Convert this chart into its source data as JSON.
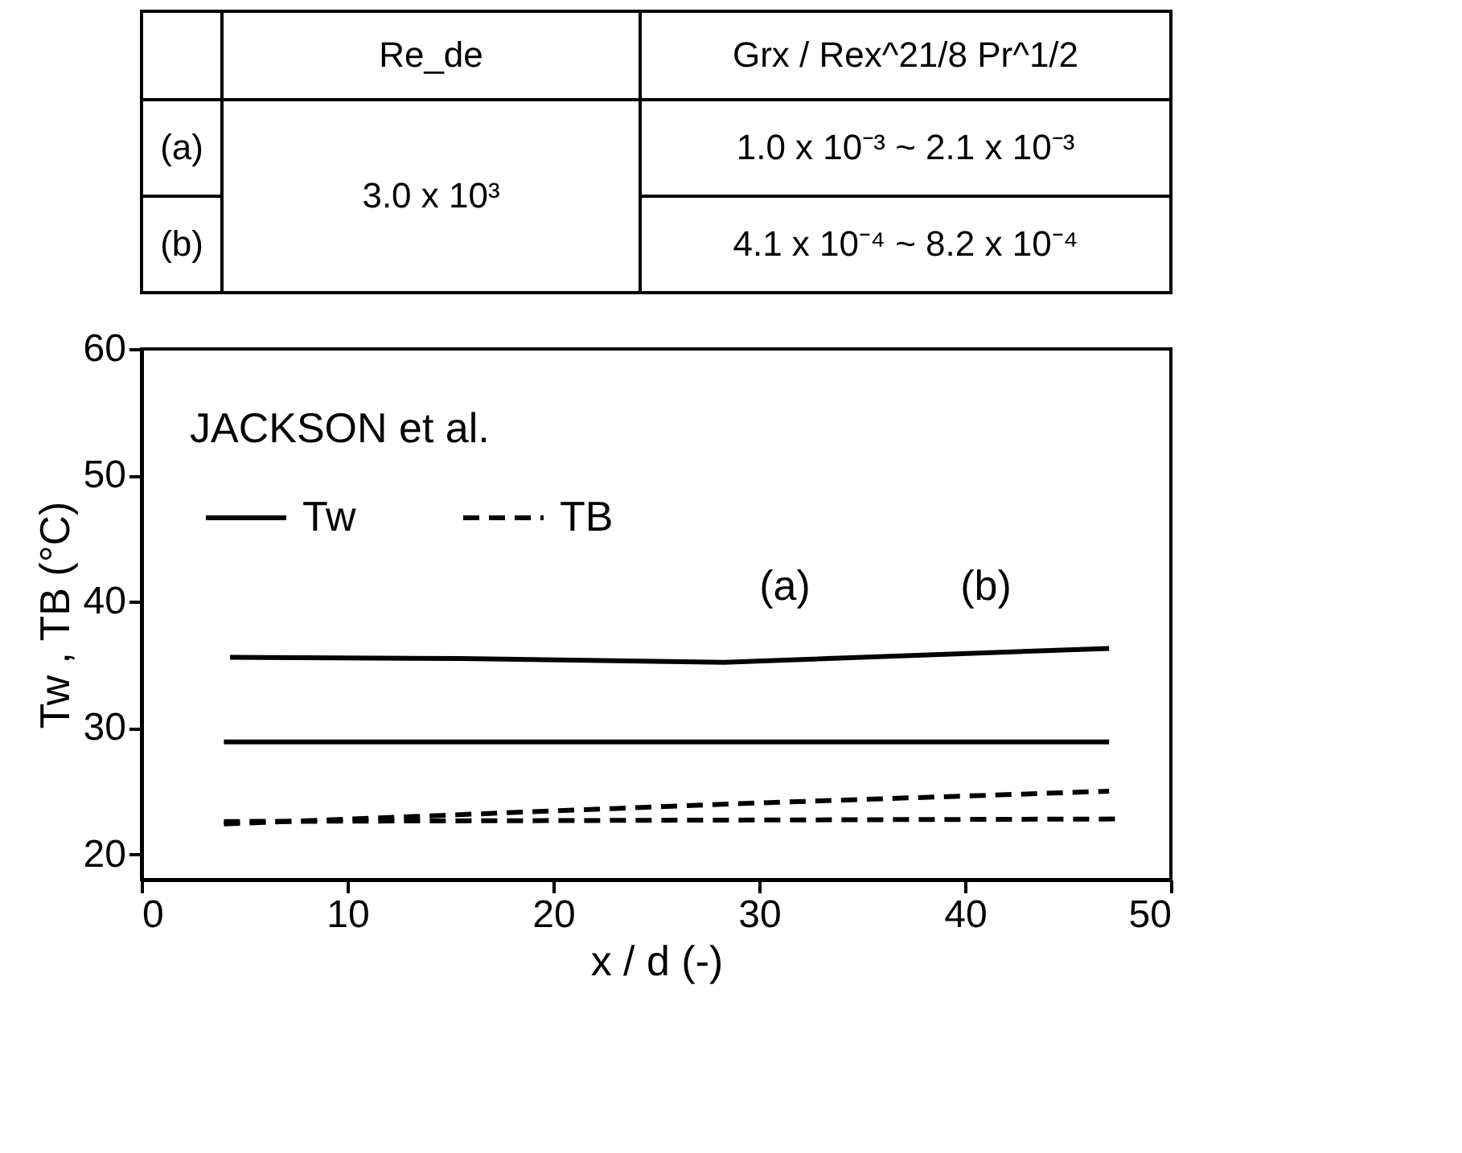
{
  "chart_data": {
    "type": "line",
    "xlabel": "x / d (-)",
    "ylabel": "Tw , TB (°C)",
    "xlim": [
      0,
      50
    ],
    "xticks": [
      0,
      10,
      20,
      30,
      40,
      50
    ],
    "ylim": [
      18,
      60
    ],
    "yticks": [
      20,
      30,
      40,
      50,
      60
    ],
    "grid": false,
    "legend": "top left",
    "series": [
      {
        "name": "Tw",
        "color": "#000000",
        "line_style": "solid",
        "x": [
          4.3,
          15.5,
          28.3,
          47
        ],
        "values": [
          35.6,
          35.5,
          35.2,
          36.3
        ]
      },
      {
        "color": "#000000",
        "line_style": "solid",
        "x": [
          4,
          47
        ],
        "values": [
          28.9,
          28.9
        ]
      },
      {
        "name": "TB",
        "color": "#000000",
        "line_style": "dashed",
        "x": [
          4,
          28.7,
          47
        ],
        "values": [
          22.4,
          24.0,
          25.0
        ]
      },
      {
        "color": "#000000",
        "line_style": "dashed",
        "x": [
          4,
          47.5
        ],
        "values": [
          22.6,
          22.8
        ]
      }
    ],
    "annotations": [
      "Re_de",
      "Grx / Rex^21/8 Pr^1/2",
      "(a)",
      "(b)",
      "3.0 x 10³",
      "1.0 x 10⁻³ ~ 2.1 x 10⁻³",
      "4.1 x 10⁻⁴ ~ 8.2 x 10⁻⁴",
      "JACKSON et al.",
      "(a)",
      "(b)"
    ]
  }
}
